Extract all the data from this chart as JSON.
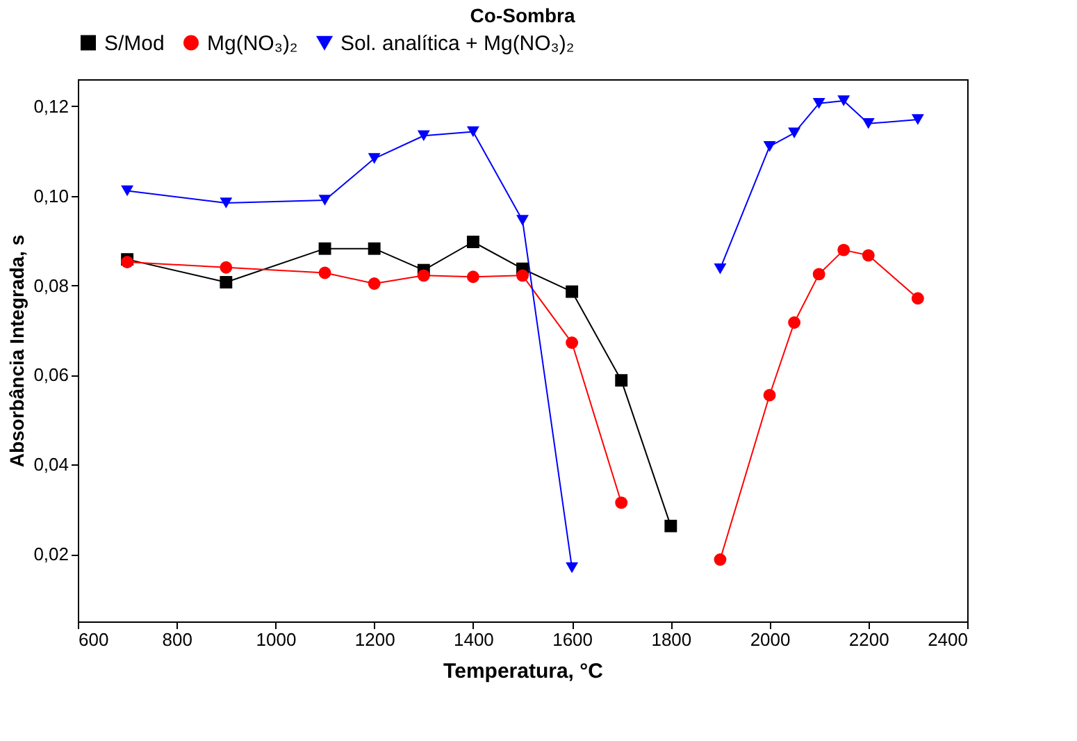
{
  "chart_data": {
    "type": "line",
    "title": "Co-Sombra",
    "xlabel": "Temperatura, °C",
    "ylabel": "Absorbância Integrada, s",
    "x": [
      700,
      900,
      1100,
      1200,
      1300,
      1400,
      1500,
      1600,
      1700,
      1800,
      1900,
      2000,
      2050,
      2100,
      2150,
      2200,
      2300
    ],
    "series": [
      {
        "name": "S/Mod",
        "color": "#000000",
        "marker": "square",
        "values": [
          0.0858,
          0.0807,
          0.0882,
          0.0882,
          0.0834,
          0.0897,
          0.0837,
          0.0786,
          0.0588,
          0.0263,
          null,
          null,
          null,
          null,
          null,
          null,
          null
        ]
      },
      {
        "name": "Mg(NO₃)₂",
        "color": "#ff0000",
        "marker": "circle",
        "values": [
          0.0852,
          0.084,
          0.0828,
          0.0804,
          0.0822,
          0.0819,
          0.0822,
          0.0672,
          0.0315,
          null,
          0.0188,
          0.0555,
          0.0717,
          0.0825,
          0.0879,
          0.0867,
          0.0771
        ]
      },
      {
        "name": "Sol. analítica + Mg(NO₃)₂",
        "color": "#0000ff",
        "marker": "triangle",
        "values": [
          0.1011,
          0.0984,
          0.099,
          0.1083,
          0.1134,
          0.1143,
          0.0945,
          0.017,
          null,
          null,
          0.0837,
          0.111,
          0.114,
          0.1206,
          0.1212,
          0.1161,
          0.117
        ]
      }
    ],
    "xlim": [
      600,
      2400
    ],
    "xticks": [
      600,
      800,
      1000,
      1200,
      1400,
      1600,
      1800,
      2000,
      2200,
      2400
    ],
    "ylim": [
      0.005,
      0.126
    ],
    "yticks": [
      {
        "value": 0.02,
        "label": "0,02"
      },
      {
        "value": 0.04,
        "label": "0,04"
      },
      {
        "value": 0.06,
        "label": "0,06"
      },
      {
        "value": 0.08,
        "label": "0,08"
      },
      {
        "value": 0.1,
        "label": "0,10"
      },
      {
        "value": 0.12,
        "label": "0,12"
      }
    ],
    "grid": false,
    "legend": "top"
  }
}
